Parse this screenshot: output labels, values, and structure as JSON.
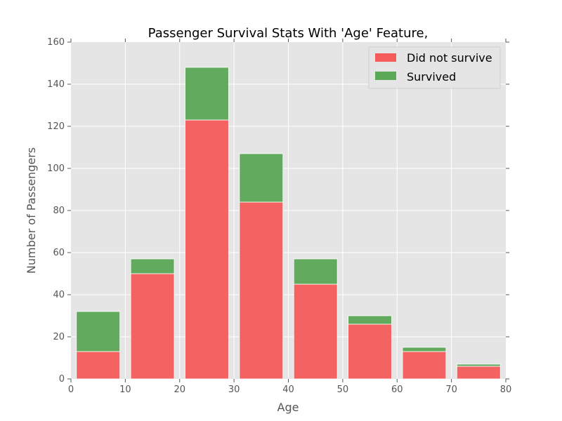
{
  "chart_data": {
    "type": "bar",
    "stacked": true,
    "title": "Passenger Survival Stats With 'Age' Feature,",
    "xlabel": "Age",
    "ylabel": "Number of Passengers",
    "xlim": [
      0,
      80
    ],
    "ylim": [
      0,
      160
    ],
    "xticks": [
      0,
      10,
      20,
      30,
      40,
      50,
      60,
      70,
      80
    ],
    "yticks": [
      0,
      20,
      40,
      60,
      80,
      100,
      120,
      140,
      160
    ],
    "bins": [
      {
        "start": 1,
        "end": 9
      },
      {
        "start": 11,
        "end": 19
      },
      {
        "start": 21,
        "end": 29
      },
      {
        "start": 31,
        "end": 39
      },
      {
        "start": 41,
        "end": 49
      },
      {
        "start": 51,
        "end": 59
      },
      {
        "start": 61,
        "end": 69
      },
      {
        "start": 71,
        "end": 79
      }
    ],
    "series": [
      {
        "name": "Did not survive",
        "color": "#f55b5b",
        "values": [
          13,
          50,
          123,
          84,
          45,
          26,
          13,
          6
        ]
      },
      {
        "name": "Survived",
        "color": "#5ba856",
        "values": [
          19,
          7,
          25,
          23,
          12,
          4,
          2,
          1
        ]
      }
    ],
    "grid": true,
    "legend_position": "top-right",
    "plot_background": "#e5e5e5",
    "grid_color": "#ffffff"
  }
}
